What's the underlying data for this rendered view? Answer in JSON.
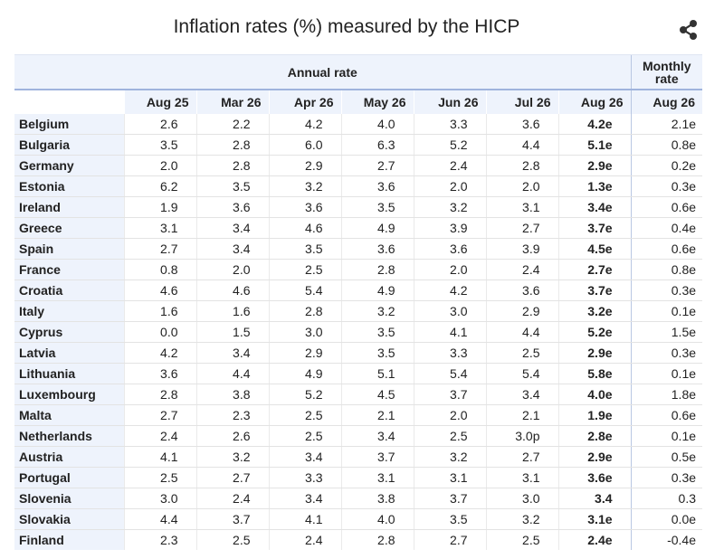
{
  "title": "Inflation rates (%) measured by the HICP",
  "share_icon": "share-icon",
  "header": {
    "annual_group": "Annual rate",
    "monthly_group_line1": "Monthly",
    "monthly_group_line2": "rate",
    "columns": [
      "Aug 25",
      "Mar 26",
      "Apr 26",
      "May 26",
      "Jun 26",
      "Jul 26",
      "Aug 26",
      "Aug 26"
    ]
  },
  "chart_data": {
    "type": "table",
    "title": "Inflation rates (%) measured by the HICP",
    "column_groups": [
      {
        "name": "Annual rate",
        "columns": [
          "Aug 25",
          "Mar 26",
          "Apr 26",
          "May 26",
          "Jun 26",
          "Jul 26",
          "Aug 26"
        ]
      },
      {
        "name": "Monthly rate",
        "columns": [
          "Aug 26"
        ]
      }
    ],
    "rows": [
      {
        "country": "Belgium",
        "values": [
          "2.6",
          "2.2",
          "4.2",
          "4.0",
          "3.3",
          "3.6",
          "4.2e",
          "2.1e"
        ]
      },
      {
        "country": "Bulgaria",
        "values": [
          "3.5",
          "2.8",
          "6.0",
          "6.3",
          "5.2",
          "4.4",
          "5.1e",
          "0.8e"
        ]
      },
      {
        "country": "Germany",
        "values": [
          "2.0",
          "2.8",
          "2.9",
          "2.7",
          "2.4",
          "2.8",
          "2.9e",
          "0.2e"
        ]
      },
      {
        "country": "Estonia",
        "values": [
          "6.2",
          "3.5",
          "3.2",
          "3.6",
          "2.0",
          "2.0",
          "1.3e",
          "0.3e"
        ]
      },
      {
        "country": "Ireland",
        "values": [
          "1.9",
          "3.6",
          "3.6",
          "3.5",
          "3.2",
          "3.1",
          "3.4e",
          "0.6e"
        ]
      },
      {
        "country": "Greece",
        "values": [
          "3.1",
          "3.4",
          "4.6",
          "4.9",
          "3.9",
          "2.7",
          "3.7e",
          "0.4e"
        ]
      },
      {
        "country": "Spain",
        "values": [
          "2.7",
          "3.4",
          "3.5",
          "3.6",
          "3.6",
          "3.9",
          "4.5e",
          "0.6e"
        ]
      },
      {
        "country": "France",
        "values": [
          "0.8",
          "2.0",
          "2.5",
          "2.8",
          "2.0",
          "2.4",
          "2.7e",
          "0.8e"
        ]
      },
      {
        "country": "Croatia",
        "values": [
          "4.6",
          "4.6",
          "5.4",
          "4.9",
          "4.2",
          "3.6",
          "3.7e",
          "0.3e"
        ]
      },
      {
        "country": "Italy",
        "values": [
          "1.6",
          "1.6",
          "2.8",
          "3.2",
          "3.0",
          "2.9",
          "3.2e",
          "0.1e"
        ]
      },
      {
        "country": "Cyprus",
        "values": [
          "0.0",
          "1.5",
          "3.0",
          "3.5",
          "4.1",
          "4.4",
          "5.2e",
          "1.5e"
        ]
      },
      {
        "country": "Latvia",
        "values": [
          "4.2",
          "3.4",
          "2.9",
          "3.5",
          "3.3",
          "2.5",
          "2.9e",
          "0.3e"
        ]
      },
      {
        "country": "Lithuania",
        "values": [
          "3.6",
          "4.4",
          "4.9",
          "5.1",
          "5.4",
          "5.4",
          "5.8e",
          "0.1e"
        ]
      },
      {
        "country": "Luxembourg",
        "values": [
          "2.8",
          "3.8",
          "5.2",
          "4.5",
          "3.7",
          "3.4",
          "4.0e",
          "1.8e"
        ]
      },
      {
        "country": "Malta",
        "values": [
          "2.7",
          "2.3",
          "2.5",
          "2.1",
          "2.0",
          "2.1",
          "1.9e",
          "0.6e"
        ]
      },
      {
        "country": "Netherlands",
        "values": [
          "2.4",
          "2.6",
          "2.5",
          "3.4",
          "2.5",
          "3.0p",
          "2.8e",
          "0.1e"
        ]
      },
      {
        "country": "Austria",
        "values": [
          "4.1",
          "3.2",
          "3.4",
          "3.7",
          "3.2",
          "2.7",
          "2.9e",
          "0.5e"
        ]
      },
      {
        "country": "Portugal",
        "values": [
          "2.5",
          "2.7",
          "3.3",
          "3.1",
          "3.1",
          "3.1",
          "3.6e",
          "0.3e"
        ]
      },
      {
        "country": "Slovenia",
        "values": [
          "3.0",
          "2.4",
          "3.4",
          "3.8",
          "3.7",
          "3.0",
          "3.4",
          "0.3"
        ]
      },
      {
        "country": "Slovakia",
        "values": [
          "4.4",
          "3.7",
          "4.1",
          "4.0",
          "3.5",
          "3.2",
          "3.1e",
          "0.0e"
        ]
      },
      {
        "country": "Finland",
        "values": [
          "2.3",
          "2.5",
          "2.4",
          "2.8",
          "2.7",
          "2.5",
          "2.4e",
          "-0.4e"
        ]
      }
    ]
  }
}
